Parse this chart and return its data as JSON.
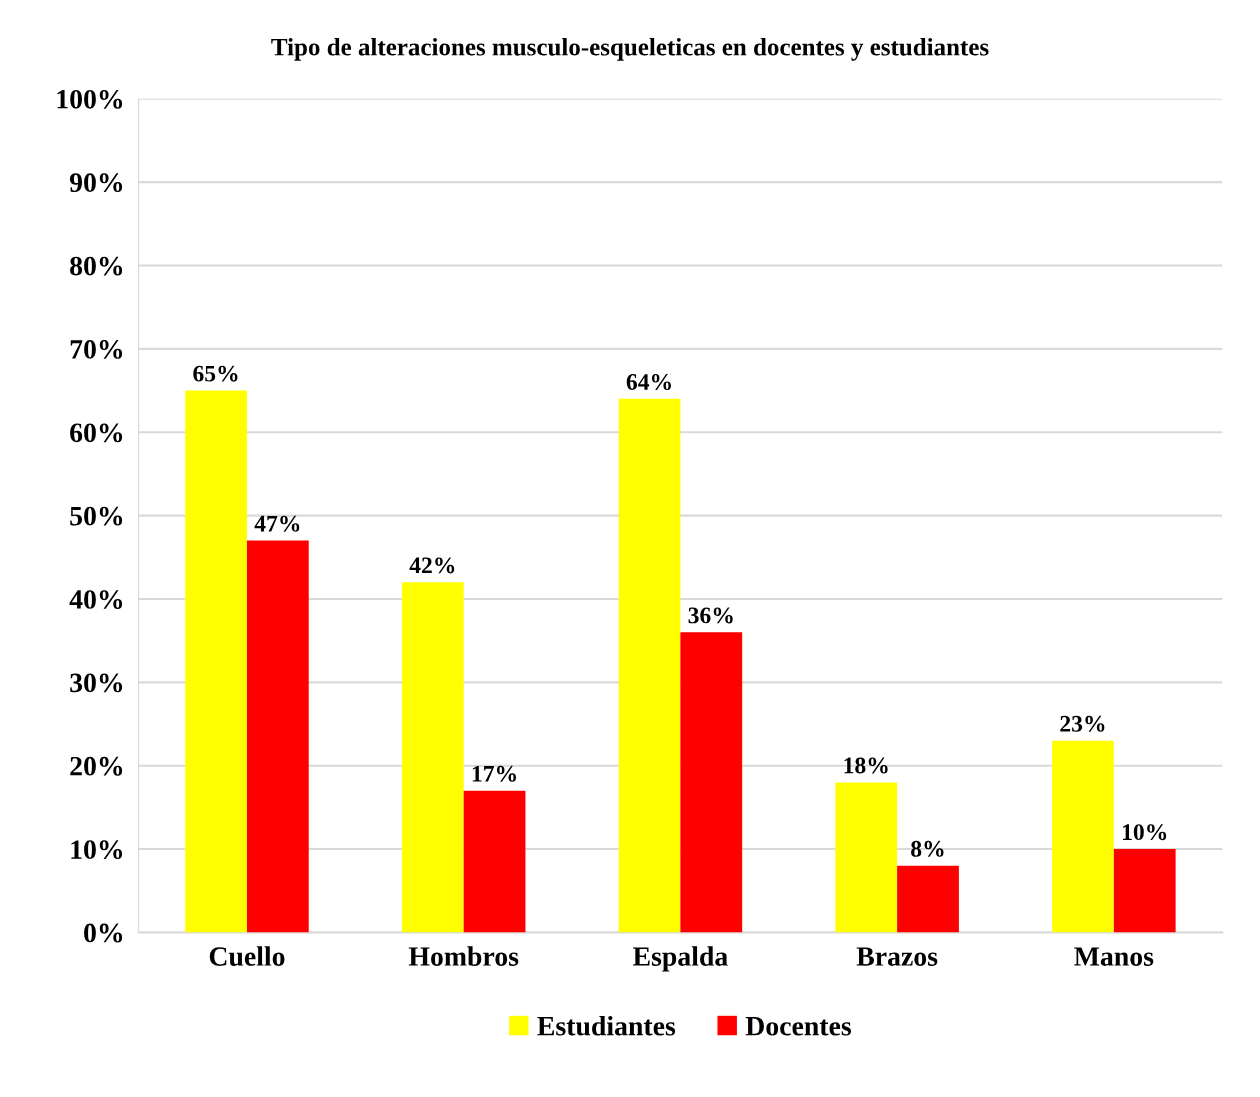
{
  "chart_data": {
    "type": "bar",
    "title": "Tipo de alteraciones musculo-esqueleticas en docentes y estudiantes",
    "categories": [
      "Cuello",
      "Hombros",
      "Espalda",
      "Brazos",
      "Manos"
    ],
    "series": [
      {
        "name": "Estudiantes",
        "color": "#ffff00",
        "values": [
          65,
          42,
          64,
          18,
          23
        ],
        "value_labels": [
          "65%",
          "42%",
          "64%",
          "18%",
          "23%"
        ]
      },
      {
        "name": "Docentes",
        "color": "#ff0000",
        "values": [
          47,
          17,
          36,
          8,
          10
        ],
        "value_labels": [
          "47%",
          "17%",
          "36%",
          "8%",
          "10%"
        ]
      }
    ],
    "ylim": [
      0,
      100
    ],
    "yticks": [
      {
        "value": 0,
        "label": "0%"
      },
      {
        "value": 10,
        "label": "10%"
      },
      {
        "value": 20,
        "label": "20%"
      },
      {
        "value": 30,
        "label": "30%"
      },
      {
        "value": 40,
        "label": "40%"
      },
      {
        "value": 50,
        "label": "50%"
      },
      {
        "value": 60,
        "label": "60%"
      },
      {
        "value": 70,
        "label": "70%"
      },
      {
        "value": 80,
        "label": "80%"
      },
      {
        "value": 90,
        "label": "90%"
      },
      {
        "value": 100,
        "label": "100%"
      }
    ],
    "grid": "y",
    "legend": "bottom"
  }
}
